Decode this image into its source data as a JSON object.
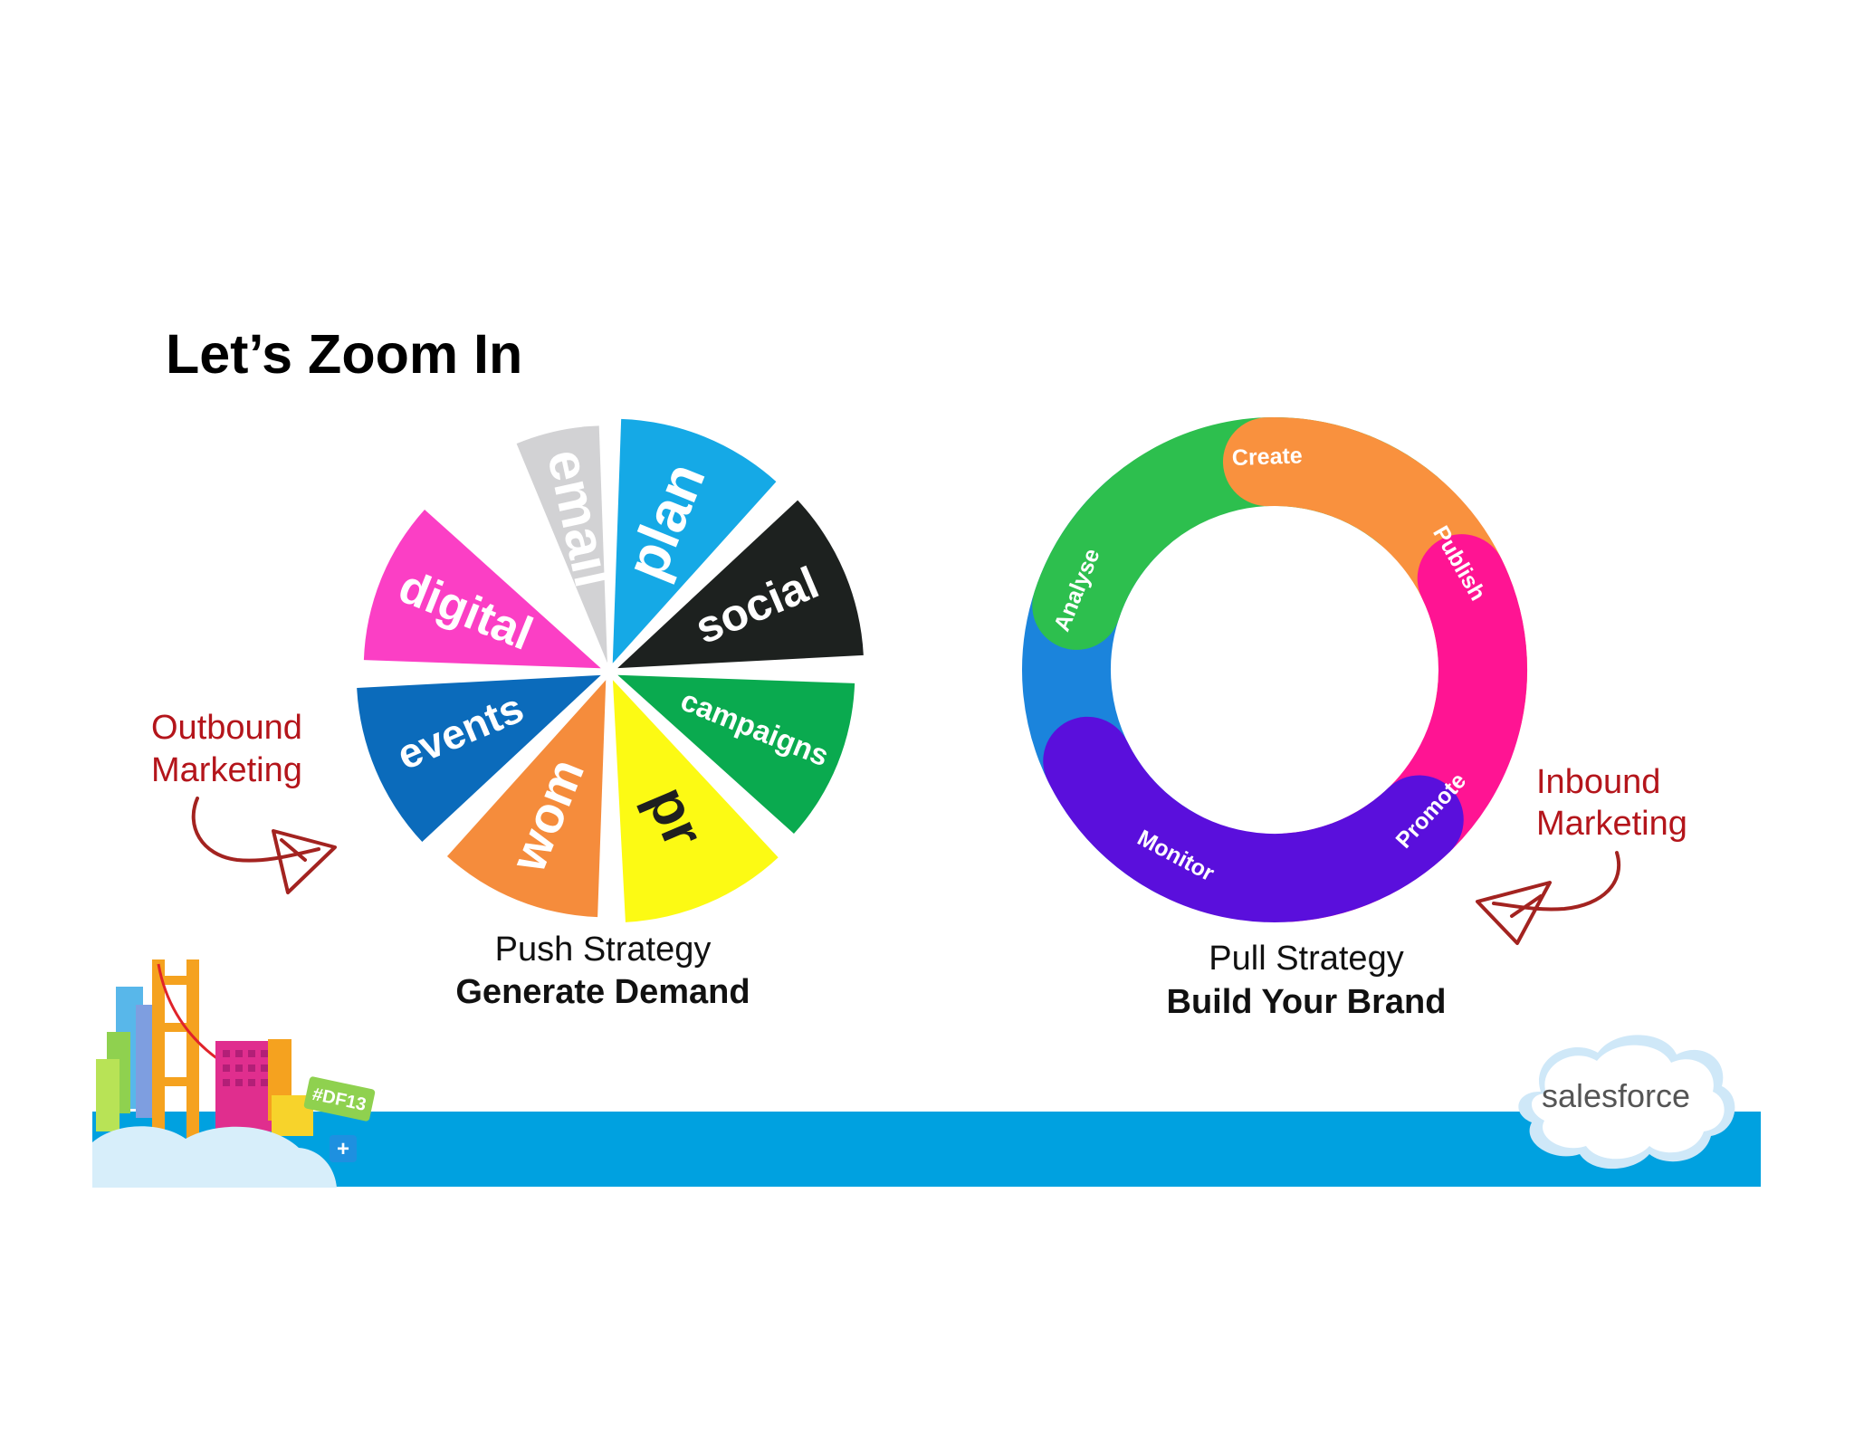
{
  "slide": {
    "title": "Let’s Zoom In",
    "push": {
      "wedges": [
        {
          "label": "email",
          "color": "#d2d2d4",
          "text_color": "#ffffff"
        },
        {
          "label": "plan",
          "color": "#15a9e6",
          "text_color": "#ffffff"
        },
        {
          "label": "social",
          "color": "#1d211f",
          "text_color": "#ffffff"
        },
        {
          "label": "campaigns",
          "color": "#0aaa4f",
          "text_color": "#ffffff"
        },
        {
          "label": "pr",
          "color": "#fcfa14",
          "text_color": "#1f1f1f"
        },
        {
          "label": "wom",
          "color": "#f58c3c",
          "text_color": "#ffffff"
        },
        {
          "label": "events",
          "color": "#0b6bbb",
          "text_color": "#ffffff"
        },
        {
          "label": "digital",
          "color": "#fb3fc5",
          "text_color": "#ffffff"
        }
      ],
      "caption": "Push Strategy",
      "caption_bold": "Generate Demand",
      "side_note": {
        "line1": "Outbound",
        "line2": "Marketing",
        "color": "#b4151b"
      }
    },
    "pull": {
      "segments": [
        {
          "label": "Create",
          "color": "#2dbf4e"
        },
        {
          "label": "Publish",
          "color": "#f9913e"
        },
        {
          "label": "Promote",
          "color": "#ff1493"
        },
        {
          "label": "Monitor",
          "color": "#5a0fdc"
        },
        {
          "label": "Analyse",
          "color": "#1b84dc"
        }
      ],
      "caption": "Pull Strategy",
      "caption_bold": "Build Your Brand",
      "side_note": {
        "line1": "Inbound",
        "line2": "Marketing",
        "color": "#b4151b"
      }
    },
    "footer": {
      "badge": "#DF13",
      "plus": "+",
      "logo_text": "salesforce",
      "bar_color": "#00a1e0"
    }
  }
}
